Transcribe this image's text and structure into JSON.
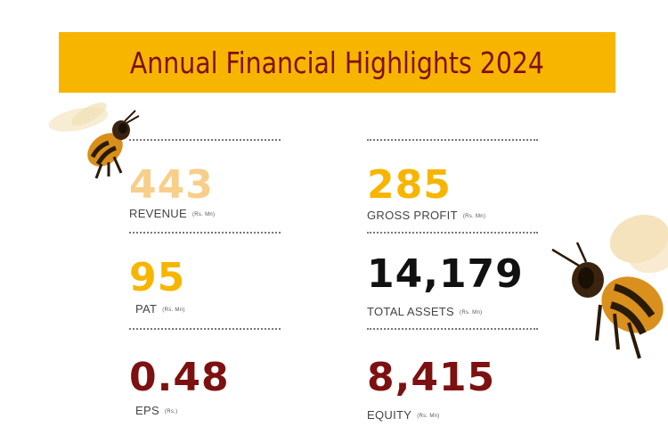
{
  "title": "Annual Financial Highlights 2024",
  "colors": {
    "banner": "#f7b500",
    "title": "#7d1010",
    "revenue": "#f7cf8a",
    "gold": "#f7b500",
    "black": "#111111",
    "maroon": "#7d1010"
  },
  "metrics": {
    "revenue": {
      "value": "443",
      "label": "REVENUE",
      "unit": "(Rs. Mn)"
    },
    "gross_profit": {
      "value": "285",
      "label": "GROSS PROFIT",
      "unit": "(Rs. Mn)"
    },
    "pat": {
      "value": "95",
      "label": "PAT",
      "unit": "(Rs. Mn)"
    },
    "total_assets": {
      "value": "14,179",
      "label": "TOTAL ASSETS",
      "unit": "(Rs. Mn)"
    },
    "eps": {
      "value": "0.48",
      "label": "EPS",
      "unit": "(Rs.)"
    },
    "equity": {
      "value": "8,415",
      "label": "EQUITY",
      "unit": "(Rs. Mn)"
    }
  },
  "decorations": [
    "bee-illustration-left",
    "bee-illustration-right"
  ]
}
